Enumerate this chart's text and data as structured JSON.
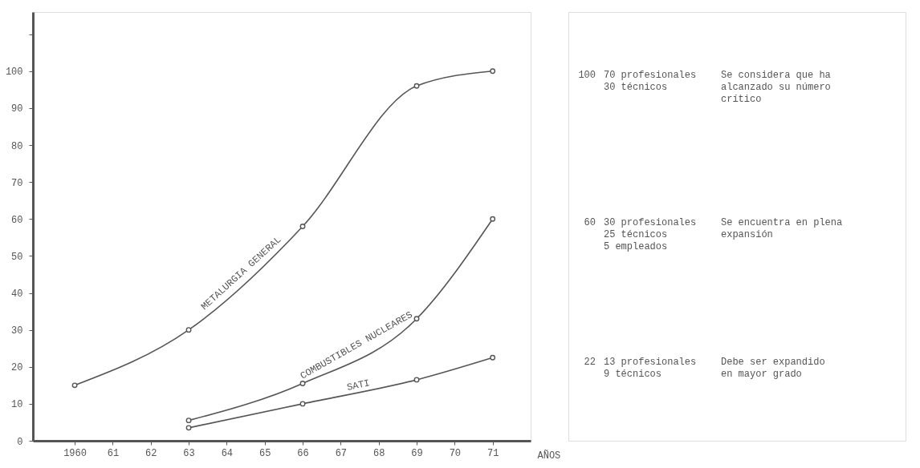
{
  "chart_data": {
    "type": "line",
    "xlabel": "AÑOS",
    "series": [
      {
        "name": "METALURGIA GENERAL",
        "color": "#555555",
        "x": [
          1960,
          1963,
          1966,
          1969,
          1971
        ],
        "values": [
          15,
          30,
          58,
          96,
          100
        ]
      },
      {
        "name": "COMBUSTIBLES NUCLEARES",
        "color": "#555555",
        "x": [
          1963,
          1966,
          1969,
          1971
        ],
        "values": [
          5.5,
          15.5,
          33,
          60
        ]
      },
      {
        "name": "SATI",
        "color": "#555555",
        "x": [
          1963,
          1966,
          1969,
          1971
        ],
        "values": [
          3.5,
          10,
          16.5,
          22.5
        ]
      }
    ],
    "xlim": [
      1958.9,
      1972
    ],
    "ylim": [
      0,
      116
    ],
    "xticks": [
      1960,
      {
        "value": 1961,
        "label": "61"
      },
      {
        "value": 1962,
        "label": "62"
      },
      {
        "value": 1963,
        "label": "63"
      },
      {
        "value": 1964,
        "label": "64"
      },
      {
        "value": 1965,
        "label": "65"
      },
      {
        "value": 1966,
        "label": "66"
      },
      {
        "value": 1967,
        "label": "67"
      },
      {
        "value": 1968,
        "label": "68"
      },
      {
        "value": 1969,
        "label": "69"
      },
      {
        "value": 1970,
        "label": "70"
      },
      {
        "value": 1971,
        "label": "71"
      }
    ],
    "yticks": [
      0,
      10,
      20,
      30,
      40,
      50,
      60,
      70,
      80,
      90,
      100,
      {
        "value": 110,
        "label": null
      }
    ],
    "marker": "circle",
    "line_style": "solid",
    "grid": false,
    "annotations": [
      "100",
      "70 profesionales\n30 técnicos",
      "Se considera que ha\nalcanzado su número\ncrítico",
      "60",
      "30 profesionales\n25 técnicos\n5 empleados",
      "Se encuentra en plena\nexpansión",
      "22",
      "13 profesionales\n9 técnicos",
      "Debe ser expandido\nen mayor grado"
    ]
  }
}
